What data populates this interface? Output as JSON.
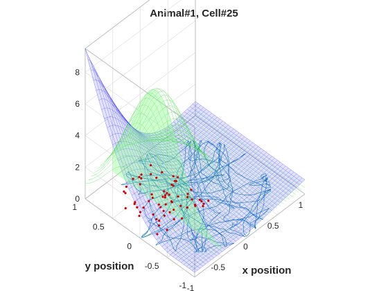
{
  "chart_data": {
    "type": "surface",
    "title": "Animal#1, Cell#25",
    "xlabel": "x position",
    "ylabel": "y position",
    "zlabel": "",
    "xlim": [
      -1,
      1
    ],
    "ylim": [
      -1,
      1
    ],
    "zlim": [
      0,
      9.5
    ],
    "x_ticks": [
      "-1",
      "-0.5",
      "0",
      "0.5",
      "1"
    ],
    "y_ticks": [
      "-1",
      "-0.5",
      "0",
      "0.5",
      "1"
    ],
    "z_ticks": [
      "0",
      "2",
      "4",
      "6",
      "8"
    ],
    "grid": true,
    "series": [
      {
        "kind": "mesh-surface",
        "color": "#0000ff",
        "description_values": {
          "corner_near_xneg_yneg": 0.0,
          "corner_xpos": 0.5,
          "peak_near_xneg_ypos": 9.5
        }
      },
      {
        "kind": "mesh-surface",
        "color": "#00ff00",
        "peak": {
          "x": -0.5,
          "y": 0.2,
          "z": 7.5
        }
      },
      {
        "kind": "trajectory",
        "color": "#0072bd",
        "shape": "circle",
        "radius": 1
      },
      {
        "kind": "spikes",
        "color": "#d40000",
        "region": "x in [-0.8, 0.1], y in [-0.2, 0.9]"
      }
    ]
  }
}
